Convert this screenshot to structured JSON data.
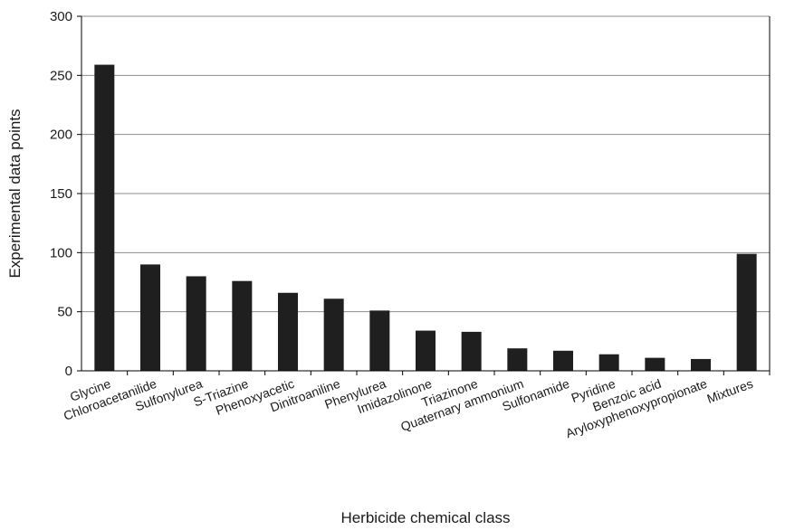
{
  "chart_data": {
    "type": "bar",
    "title": "",
    "xlabel": "Herbicide chemical class",
    "ylabel": "Experimental data points",
    "ylim": [
      0,
      300
    ],
    "yticks": [
      0,
      50,
      100,
      150,
      200,
      250,
      300
    ],
    "grid": true,
    "legend": "none",
    "bar_color": "#1f1f1f",
    "categories": [
      "Glycine",
      "Chloroacetanilide",
      "Sulfonylurea",
      "S-Triazine",
      "Phenoxyacetic",
      "Dinitroaniline",
      "Phenylurea",
      "Imidazolinone",
      "Triazinone",
      "Quaternary ammonium",
      "Sulfonamide",
      "Pyridine",
      "Benzoic acid",
      "Aryloxyphenoxypropionate",
      "Mixtures"
    ],
    "values": [
      259,
      90,
      80,
      76,
      66,
      61,
      51,
      34,
      33,
      19,
      17,
      14,
      11,
      10,
      99
    ]
  }
}
